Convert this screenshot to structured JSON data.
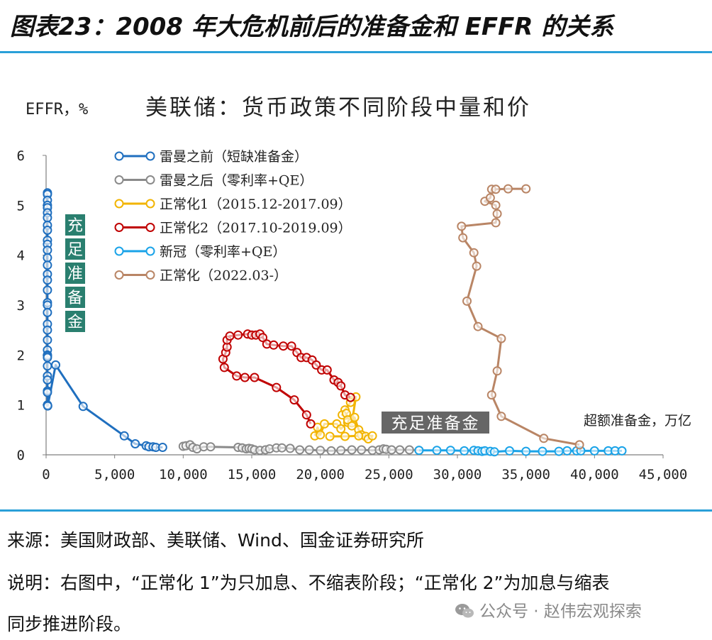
{
  "figure_title": "图表23：2008 年大危机前后的准备金和 EFFR 的关系",
  "footer": {
    "source": "来源：美国财政部、美联储、Wind、国金证券研究所",
    "note_line1": "说明：右图中，“正常化 1”为只加息、不缩表阶段；“正常化 2”为加息与缩表",
    "note_line2": "同步推进阶段。"
  },
  "watermark": "公众号 · 赵伟宏观探索",
  "chart_data": {
    "type": "scatter",
    "title": "美联储：货币政策不同阶段中量和价",
    "ylabel": "EFFR，%",
    "xlabel": "超额准备金，万亿",
    "xlim": [
      0,
      45000
    ],
    "ylim": [
      0,
      6
    ],
    "xticks": [
      0,
      5000,
      10000,
      15000,
      20000,
      25000,
      30000,
      35000,
      40000,
      45000
    ],
    "xtick_labels": [
      "0",
      "5,000",
      "10,000",
      "15,000",
      "20,000",
      "25,000",
      "30,000",
      "35,000",
      "40,000",
      "45,000"
    ],
    "yticks": [
      0,
      1,
      2,
      3,
      4,
      5,
      6
    ],
    "ytick_labels": [
      "0",
      "1",
      "2",
      "3",
      "4",
      "5",
      "6"
    ],
    "grid": false,
    "legend_position": "top-left",
    "annotations": [
      {
        "text": "充足准备金",
        "orientation": "vertical",
        "color": "#2a7f6f"
      },
      {
        "text": "充足准备金",
        "orientation": "horizontal",
        "color": "#666666"
      }
    ],
    "series": [
      {
        "name": "雷曼之前（短缺准备金）",
        "color": "#1f6fbf",
        "points": [
          [
            100,
            5.25
          ],
          [
            100,
            5.22
          ],
          [
            100,
            5.1
          ],
          [
            100,
            5.0
          ],
          [
            100,
            4.95
          ],
          [
            100,
            4.85
          ],
          [
            100,
            4.75
          ],
          [
            100,
            4.6
          ],
          [
            100,
            4.5
          ],
          [
            100,
            4.3
          ],
          [
            100,
            4.22
          ],
          [
            100,
            4.1
          ],
          [
            100,
            3.95
          ],
          [
            100,
            3.8
          ],
          [
            100,
            3.62
          ],
          [
            100,
            3.5
          ],
          [
            100,
            3.3
          ],
          [
            100,
            3.05
          ],
          [
            100,
            3.0
          ],
          [
            100,
            2.85
          ],
          [
            100,
            2.62
          ],
          [
            100,
            2.5
          ],
          [
            100,
            2.3
          ],
          [
            100,
            2.1
          ],
          [
            100,
            2.0
          ],
          [
            100,
            1.98
          ],
          [
            100,
            1.95
          ],
          [
            100,
            1.78
          ],
          [
            100,
            1.58
          ],
          [
            100,
            1.5
          ],
          [
            100,
            1.28
          ],
          [
            100,
            1.25
          ],
          [
            100,
            1.0
          ],
          [
            120,
            0.98
          ],
          [
            700,
            1.8
          ],
          [
            2700,
            0.97
          ],
          [
            5700,
            0.38
          ],
          [
            6500,
            0.22
          ],
          [
            7300,
            0.18
          ],
          [
            7500,
            0.16
          ],
          [
            7800,
            0.16
          ],
          [
            8000,
            0.15
          ],
          [
            8500,
            0.15
          ]
        ]
      },
      {
        "name": "雷曼之后（零利率+QE）",
        "color": "#8a8a8a",
        "points": [
          [
            10000,
            0.17
          ],
          [
            10200,
            0.18
          ],
          [
            10500,
            0.2
          ],
          [
            10700,
            0.15
          ],
          [
            11000,
            0.12
          ],
          [
            11500,
            0.16
          ],
          [
            12000,
            0.16
          ],
          [
            14000,
            0.15
          ],
          [
            14300,
            0.14
          ],
          [
            14600,
            0.12
          ],
          [
            14800,
            0.13
          ],
          [
            15000,
            0.12
          ],
          [
            15200,
            0.1
          ],
          [
            15600,
            0.09
          ],
          [
            16000,
            0.1
          ],
          [
            16300,
            0.12
          ],
          [
            16800,
            0.14
          ],
          [
            17200,
            0.14
          ],
          [
            17800,
            0.13
          ],
          [
            18500,
            0.1
          ],
          [
            19200,
            0.1
          ],
          [
            20000,
            0.09
          ],
          [
            20800,
            0.08
          ],
          [
            21500,
            0.09
          ],
          [
            22300,
            0.1
          ],
          [
            23000,
            0.1
          ],
          [
            23800,
            0.09
          ],
          [
            24300,
            0.1
          ],
          [
            24600,
            0.12
          ],
          [
            24800,
            0.11
          ],
          [
            25200,
            0.1
          ],
          [
            25800,
            0.1
          ],
          [
            26500,
            0.1
          ],
          [
            27200,
            0.09
          ]
        ]
      },
      {
        "name": "正常化1（2015.12-2017.09）",
        "color": "#f2b400",
        "points": [
          [
            19600,
            0.38
          ],
          [
            19800,
            0.55
          ],
          [
            20000,
            0.4
          ],
          [
            20300,
            0.62
          ],
          [
            21200,
            0.62
          ],
          [
            21500,
            0.52
          ],
          [
            22000,
            0.65
          ],
          [
            22300,
            0.64
          ],
          [
            22600,
            1.16
          ],
          [
            22200,
            1.05
          ],
          [
            21800,
            0.9
          ],
          [
            21600,
            0.8
          ],
          [
            21900,
            0.83
          ],
          [
            22000,
            0.7
          ],
          [
            22300,
            0.58
          ],
          [
            22500,
            0.75
          ],
          [
            22800,
            0.5
          ],
          [
            23000,
            0.4
          ],
          [
            23300,
            0.37
          ],
          [
            23500,
            0.32
          ],
          [
            23800,
            0.38
          ],
          [
            22800,
            0.38
          ],
          [
            21800,
            0.37
          ],
          [
            20700,
            0.37
          ]
        ]
      },
      {
        "name": "正常化2（2017.10-2019.09）",
        "color": "#c00000",
        "points": [
          [
            19300,
            0.62
          ],
          [
            19000,
            0.8
          ],
          [
            18100,
            1.1
          ],
          [
            16800,
            1.35
          ],
          [
            15200,
            1.55
          ],
          [
            14500,
            1.55
          ],
          [
            13900,
            1.58
          ],
          [
            13000,
            1.75
          ],
          [
            12900,
            1.92
          ],
          [
            13100,
            2.05
          ],
          [
            13200,
            2.16
          ],
          [
            13200,
            2.3
          ],
          [
            13400,
            2.38
          ],
          [
            14000,
            2.4
          ],
          [
            14700,
            2.42
          ],
          [
            15000,
            2.4
          ],
          [
            15300,
            2.4
          ],
          [
            15600,
            2.42
          ],
          [
            15800,
            2.35
          ],
          [
            16100,
            2.22
          ],
          [
            16600,
            2.2
          ],
          [
            17300,
            2.18
          ],
          [
            17900,
            2.18
          ],
          [
            18300,
            2.05
          ],
          [
            18600,
            1.95
          ],
          [
            19000,
            1.95
          ],
          [
            19400,
            1.9
          ],
          [
            19700,
            1.8
          ],
          [
            20100,
            1.7
          ],
          [
            20500,
            1.7
          ],
          [
            21000,
            1.5
          ],
          [
            21300,
            1.45
          ],
          [
            21500,
            1.38
          ],
          [
            21800,
            1.2
          ],
          [
            22200,
            1.15
          ]
        ]
      },
      {
        "name": "新冠（零利率+QE）",
        "color": "#1aa3e8",
        "points": [
          [
            27200,
            0.09
          ],
          [
            28500,
            0.09
          ],
          [
            29500,
            0.09
          ],
          [
            30500,
            0.08
          ],
          [
            31200,
            0.09
          ],
          [
            31500,
            0.08
          ],
          [
            31800,
            0.07
          ],
          [
            32000,
            0.08
          ],
          [
            32400,
            0.07
          ],
          [
            32700,
            0.06
          ],
          [
            33800,
            0.08
          ],
          [
            35000,
            0.07
          ],
          [
            36200,
            0.07
          ],
          [
            37400,
            0.07
          ],
          [
            38000,
            0.08
          ],
          [
            38700,
            0.08
          ],
          [
            39000,
            0.08
          ],
          [
            40000,
            0.08
          ],
          [
            41000,
            0.08
          ],
          [
            41500,
            0.08
          ],
          [
            42000,
            0.08
          ]
        ]
      },
      {
        "name": "正常化（2022.03-）",
        "color": "#b98565",
        "points": [
          [
            38900,
            0.2
          ],
          [
            36300,
            0.33
          ],
          [
            33200,
            0.77
          ],
          [
            32500,
            1.2
          ],
          [
            32900,
            1.68
          ],
          [
            33200,
            2.33
          ],
          [
            31500,
            2.57
          ],
          [
            30700,
            3.08
          ],
          [
            31400,
            3.78
          ],
          [
            31200,
            4.05
          ],
          [
            30400,
            4.35
          ],
          [
            30300,
            4.58
          ],
          [
            32800,
            4.65
          ],
          [
            32900,
            4.83
          ],
          [
            32800,
            5.0
          ],
          [
            32000,
            5.08
          ],
          [
            32400,
            5.15
          ],
          [
            32500,
            5.32
          ],
          [
            32800,
            5.32
          ],
          [
            33700,
            5.33
          ],
          [
            35000,
            5.33
          ]
        ]
      }
    ]
  }
}
